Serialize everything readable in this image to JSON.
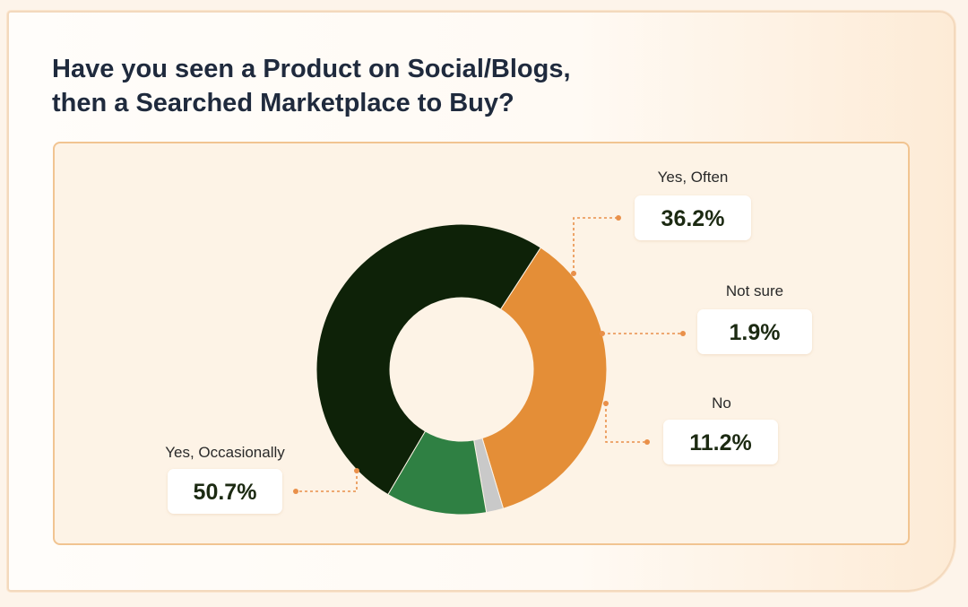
{
  "title_lines": [
    "Have you seen a Product on Social/Blogs,",
    "then a Searched Marketplace to Buy?"
  ],
  "chart_data": {
    "type": "pie",
    "donut": true,
    "title": "Have you seen a Product on Social/Blogs, then a Searched Marketplace to Buy?",
    "unit": "%",
    "slices": [
      {
        "label": "Yes, Often",
        "value": 36.2,
        "display": "36.2%",
        "color": "#e48e37"
      },
      {
        "label": "Not sure",
        "value": 1.9,
        "display": "1.9%",
        "color": "#c9c9c9"
      },
      {
        "label": "No",
        "value": 11.2,
        "display": "11.2%",
        "color": "#2f8043"
      },
      {
        "label": "Yes, Occasionally",
        "value": 50.7,
        "display": "50.7%",
        "color": "#0e2208"
      }
    ],
    "leader_color": "#e9904a",
    "legend": "none (callout labels)"
  }
}
